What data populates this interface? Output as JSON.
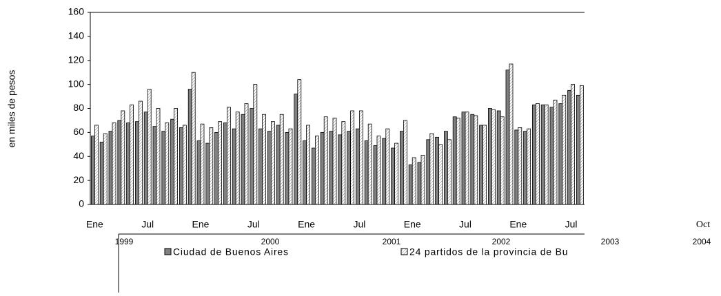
{
  "chart_data": {
    "type": "bar",
    "y_label": "en miles de pesos",
    "categories": [
      "Ene",
      null,
      null,
      null,
      null,
      null,
      "Jul",
      null,
      null,
      null,
      null,
      null,
      "Ene",
      null,
      null,
      null,
      null,
      null,
      "Jul",
      null,
      null,
      null,
      null,
      null,
      "Ene",
      null,
      null,
      null,
      null,
      null,
      "Jul",
      null,
      null,
      null,
      null,
      null,
      "Ene",
      null,
      null,
      null,
      null,
      null,
      "Jul",
      null,
      null,
      null,
      null,
      null,
      "Ene",
      null,
      null,
      null,
      null,
      null,
      "Jul",
      null
    ],
    "year_labels": [
      "1999",
      "2000",
      "2001",
      "2002",
      "2003",
      "2004"
    ],
    "extra_label": "Oct",
    "series": [
      {
        "name": "Ciudad de Buenos Aires",
        "color": "#808080",
        "values": [
          57,
          52,
          61,
          70,
          68,
          69,
          77,
          65,
          61,
          71,
          64,
          96,
          53,
          51,
          60,
          68,
          63,
          75,
          80,
          63,
          61,
          66,
          60,
          92,
          53,
          47,
          60,
          61,
          58,
          61,
          63,
          53,
          49,
          55,
          47,
          61,
          33,
          35,
          54,
          56,
          61,
          73,
          77,
          75,
          66,
          80,
          78,
          112,
          62,
          61,
          83,
          83,
          81,
          84,
          95,
          91
        ]
      },
      {
        "name": "24 partidos de la provincia de Bu",
        "color": "#ffffff",
        "values": [
          66,
          59,
          68,
          78,
          83,
          86,
          96,
          80,
          68,
          80,
          66,
          110,
          67,
          64,
          69,
          81,
          77,
          84,
          100,
          75,
          69,
          75,
          63,
          104,
          66,
          57,
          73,
          72,
          69,
          78,
          78,
          67,
          57,
          63,
          51,
          70,
          39,
          41,
          59,
          50,
          54,
          72,
          77,
          74,
          66,
          79,
          73,
          117,
          64,
          63,
          84,
          83,
          87,
          91,
          100,
          99
        ]
      }
    ],
    "ylim": [
      0,
      160
    ],
    "yticks": [
      0,
      20,
      40,
      60,
      80,
      100,
      120,
      140,
      160
    ],
    "grid": false
  }
}
